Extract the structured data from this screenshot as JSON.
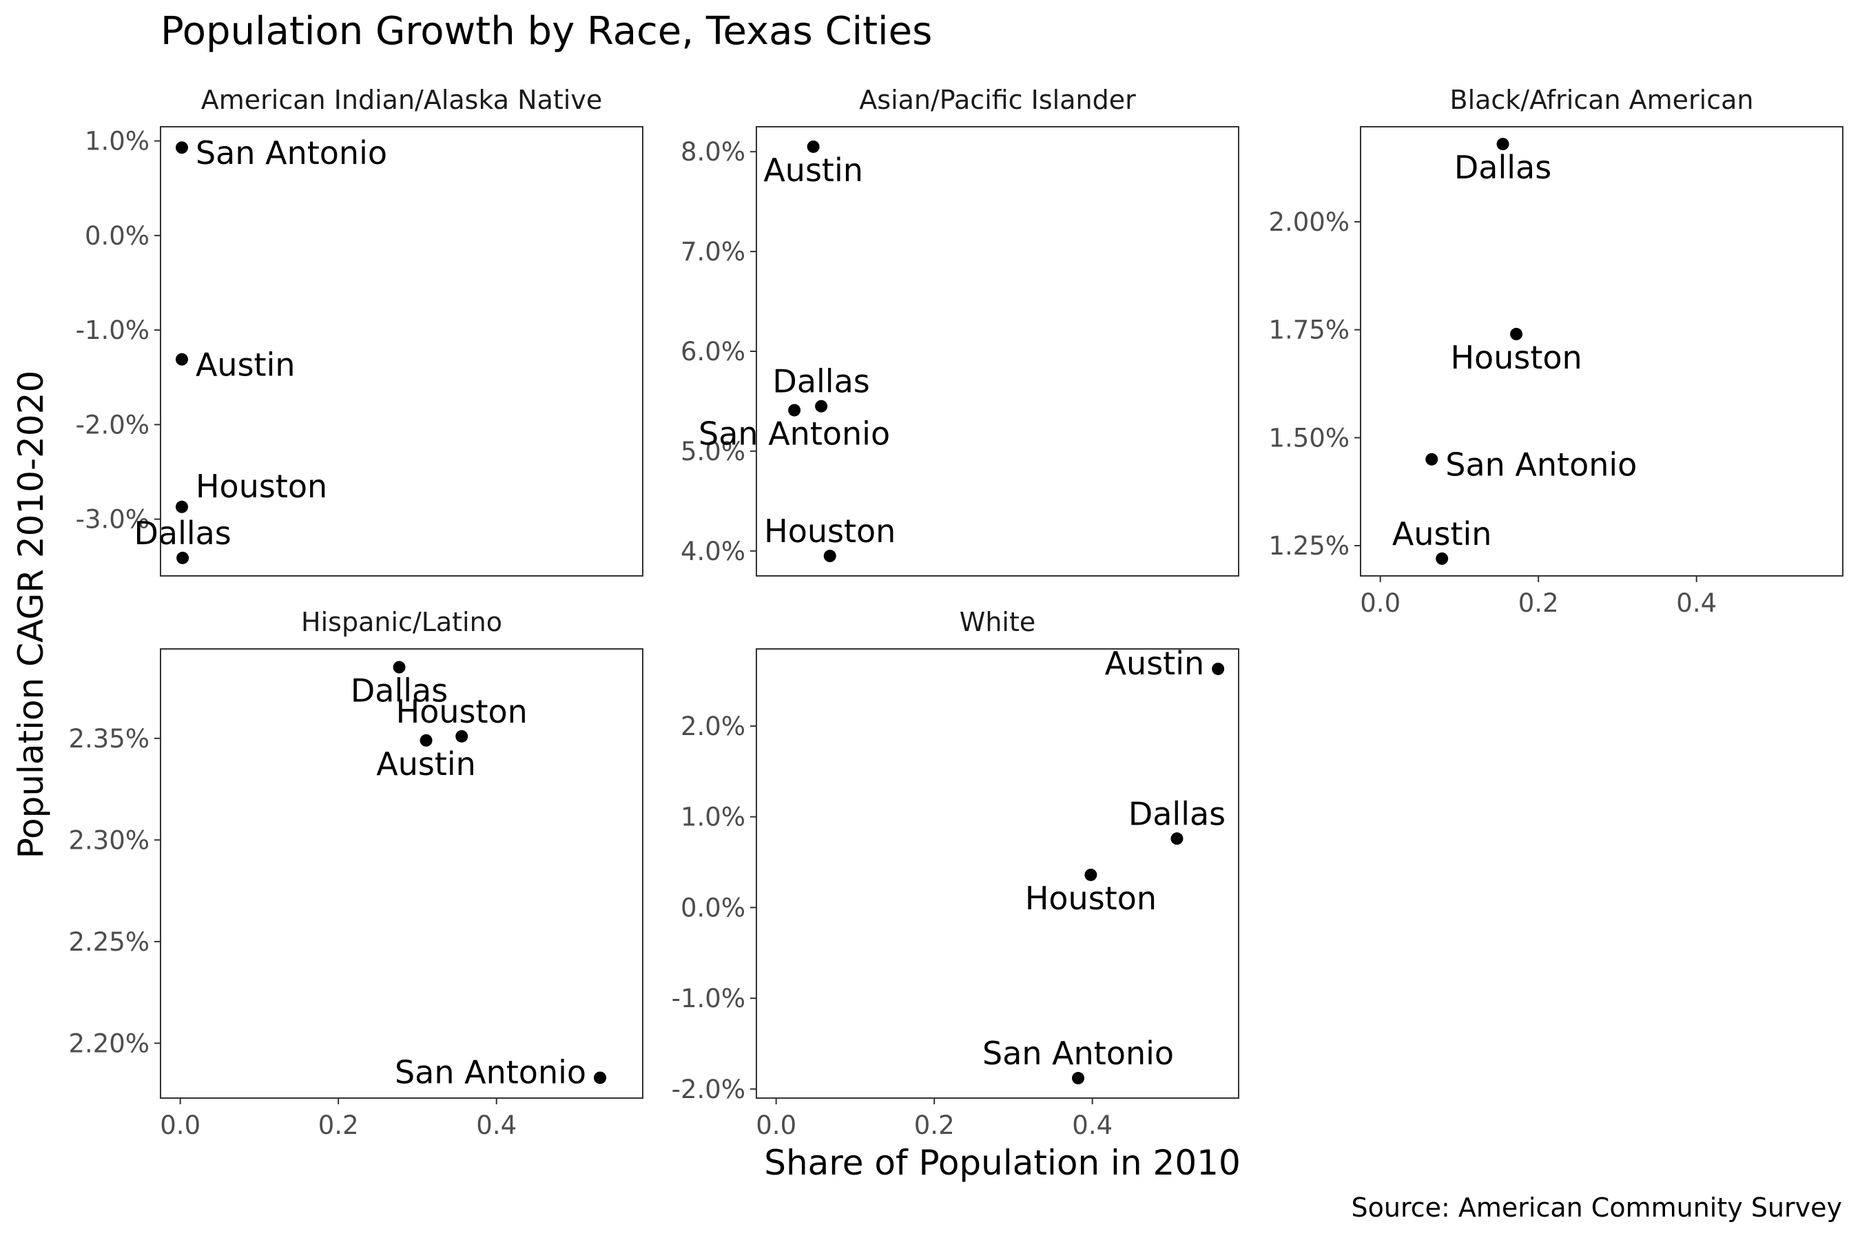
{
  "chart_data": {
    "type": "scatter",
    "title": "Population Growth by Race, Texas Cities",
    "xlabel": "Share of Population in 2010",
    "ylabel": "Population CAGR 2010-2020",
    "caption": "Source: American Community Survey",
    "xlim": [
      -0.025,
      0.585
    ],
    "x_ticks": [
      0.0,
      0.2,
      0.4
    ],
    "x_tick_labels": [
      "0.0",
      "0.2",
      "0.4"
    ],
    "grid": false,
    "facets": [
      {
        "name": "American Indian/Alaska Native",
        "ylim": [
          -3.6,
          1.15
        ],
        "y_ticks": [
          1.0,
          0.0,
          -1.0,
          -2.0,
          -3.0
        ],
        "y_tick_labels": [
          "1.0%",
          "0.0%",
          "-1.0%",
          "-2.0%",
          "-3.0%"
        ],
        "points": [
          {
            "city": "San Antonio",
            "x": 0.002,
            "y": 0.93,
            "label_pos": "right"
          },
          {
            "city": "Austin",
            "x": 0.002,
            "y": -1.31,
            "label_pos": "right"
          },
          {
            "city": "Houston",
            "x": 0.002,
            "y": -2.87,
            "label_pos": "upper-right"
          },
          {
            "city": "Dallas",
            "x": 0.003,
            "y": -3.41,
            "label_pos": "above"
          }
        ]
      },
      {
        "name": "Asian/Pacific Islander",
        "ylim": [
          3.75,
          8.25
        ],
        "y_ticks": [
          8.0,
          7.0,
          6.0,
          5.0,
          4.0
        ],
        "y_tick_labels": [
          "8.0%",
          "7.0%",
          "6.0%",
          "5.0%",
          "4.0%"
        ],
        "points": [
          {
            "city": "Austin",
            "x": 0.047,
            "y": 8.05,
            "label_pos": "below"
          },
          {
            "city": "Dallas",
            "x": 0.057,
            "y": 5.45,
            "label_pos": "above"
          },
          {
            "city": "San Antonio",
            "x": 0.023,
            "y": 5.41,
            "label_pos": "below"
          },
          {
            "city": "Houston",
            "x": 0.068,
            "y": 3.95,
            "label_pos": "above"
          }
        ]
      },
      {
        "name": "Black/African American",
        "ylim": [
          1.18,
          2.22
        ],
        "y_ticks": [
          2.0,
          1.75,
          1.5,
          1.25
        ],
        "y_tick_labels": [
          "2.00%",
          "1.75%",
          "1.50%",
          "1.25%"
        ],
        "points": [
          {
            "city": "Dallas",
            "x": 0.155,
            "y": 2.18,
            "label_pos": "below"
          },
          {
            "city": "Houston",
            "x": 0.172,
            "y": 1.74,
            "label_pos": "below"
          },
          {
            "city": "San Antonio",
            "x": 0.065,
            "y": 1.45,
            "label_pos": "right"
          },
          {
            "city": "Austin",
            "x": 0.078,
            "y": 1.22,
            "label_pos": "above"
          }
        ]
      },
      {
        "name": "Hispanic/Latino",
        "ylim": [
          2.173,
          2.394
        ],
        "y_ticks": [
          2.35,
          2.3,
          2.25,
          2.2
        ],
        "y_tick_labels": [
          "2.35%",
          "2.30%",
          "2.25%",
          "2.20%"
        ],
        "points": [
          {
            "city": "Dallas",
            "x": 0.277,
            "y": 2.385,
            "label_pos": "below"
          },
          {
            "city": "Houston",
            "x": 0.356,
            "y": 2.351,
            "label_pos": "above"
          },
          {
            "city": "Austin",
            "x": 0.311,
            "y": 2.349,
            "label_pos": "below"
          },
          {
            "city": "San Antonio",
            "x": 0.531,
            "y": 2.183,
            "label_pos": "left"
          }
        ]
      },
      {
        "name": "White",
        "ylim": [
          -2.1,
          2.85
        ],
        "y_ticks": [
          2.0,
          1.0,
          0.0,
          -1.0,
          -2.0
        ],
        "y_tick_labels": [
          "2.0%",
          "1.0%",
          "0.0%",
          "-1.0%",
          "-2.0%"
        ],
        "points": [
          {
            "city": "Austin",
            "x": 0.559,
            "y": 2.63,
            "label_pos": "left"
          },
          {
            "city": "Dallas",
            "x": 0.507,
            "y": 0.76,
            "label_pos": "above"
          },
          {
            "city": "Houston",
            "x": 0.398,
            "y": 0.36,
            "label_pos": "below"
          },
          {
            "city": "San Antonio",
            "x": 0.382,
            "y": -1.88,
            "label_pos": "above"
          }
        ]
      }
    ]
  }
}
